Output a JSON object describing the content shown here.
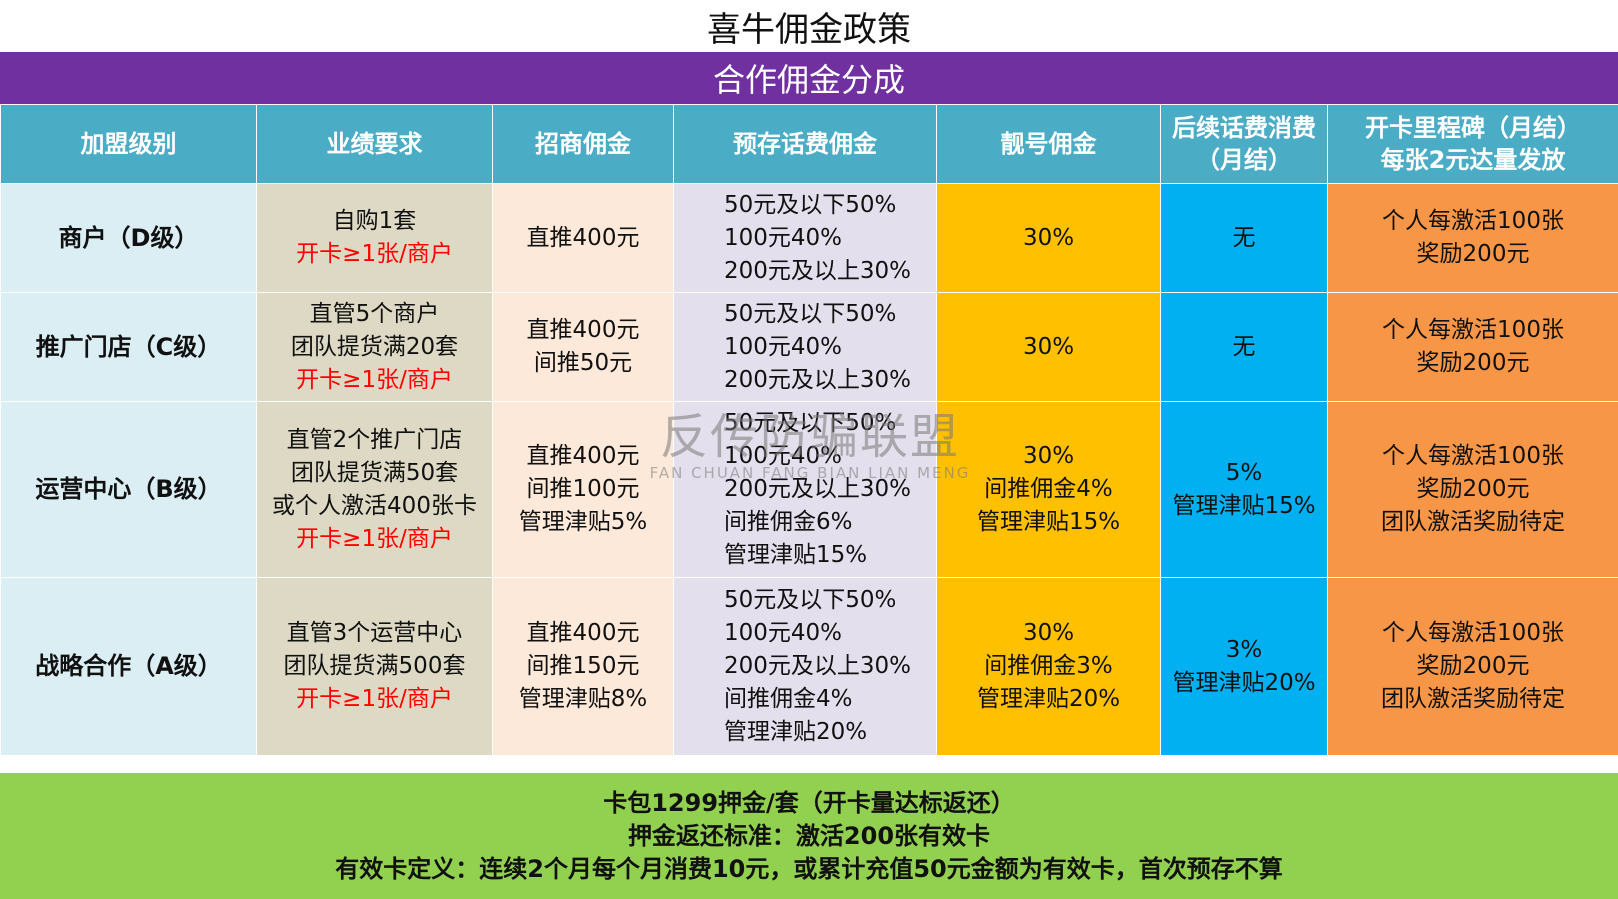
{
  "title": "喜牛佣金政策",
  "subtitle": "合作佣金分成",
  "headers": [
    "加盟级别",
    "业绩要求",
    "招商佣金",
    "预存话费佣金",
    "靓号佣金",
    "后续话费消费（月结）",
    "开卡里程碑（月结）每张2元达量发放"
  ],
  "headers_lines": {
    "consume": [
      "后续话费消费",
      "（月结）"
    ],
    "milestone": [
      "开卡里程碑（月结）",
      "每张2元达量发放"
    ]
  },
  "rows": [
    {
      "level": "商户（D级）",
      "perf": [
        "自购1套"
      ],
      "perf_red": "开卡≥1张/商户",
      "recruit": [
        "直推400元"
      ],
      "prestore": [
        "50元及以下50%",
        "100元40%",
        "200元及以上30%"
      ],
      "number": [
        "30%"
      ],
      "consume": [
        "无"
      ],
      "milestone": [
        "个人每激活100张",
        "奖励200元"
      ]
    },
    {
      "level": "推广门店（C级）",
      "perf": [
        "直管5个商户",
        "团队提货满20套"
      ],
      "perf_red": "开卡≥1张/商户",
      "recruit": [
        "直推400元",
        "间推50元"
      ],
      "prestore": [
        "50元及以下50%",
        "100元40%",
        "200元及以上30%"
      ],
      "number": [
        "30%"
      ],
      "consume": [
        "无"
      ],
      "milestone": [
        "个人每激活100张",
        "奖励200元"
      ]
    },
    {
      "level": "运营中心（B级）",
      "perf": [
        "直管2个推广门店",
        "团队提货满50套",
        "或个人激活400张卡"
      ],
      "perf_red": "开卡≥1张/商户",
      "recruit": [
        "直推400元",
        "间推100元",
        "管理津贴5%"
      ],
      "prestore": [
        "50元及以下50%",
        "100元40%",
        "200元及以上30%",
        "间推佣金6%",
        "管理津贴15%"
      ],
      "number": [
        "30%",
        "间推佣金4%",
        "管理津贴15%"
      ],
      "consume": [
        "5%",
        "管理津贴15%"
      ],
      "milestone": [
        "个人每激活100张",
        "奖励200元",
        "团队激活奖励待定"
      ]
    },
    {
      "level": "战略合作（A级）",
      "perf": [
        "直管3个运营中心",
        "团队提货满500套"
      ],
      "perf_red": "开卡≥1张/商户",
      "recruit": [
        "直推400元",
        "间推150元",
        "管理津贴8%"
      ],
      "prestore": [
        "50元及以下50%",
        "100元40%",
        "200元及以上30%",
        "间推佣金4%",
        "管理津贴20%"
      ],
      "number": [
        "30%",
        "间推佣金3%",
        "管理津贴20%"
      ],
      "consume": [
        "3%",
        "管理津贴20%"
      ],
      "milestone": [
        "个人每激活100张",
        "奖励200元",
        "团队激活奖励待定"
      ]
    }
  ],
  "footer": [
    "卡包1299押金/套（开卡量达标返还）",
    "押金返还标准：激活200张有效卡",
    "有效卡定义：连续2个月每个月消费10元，或累计充值50元金额为有效卡，首次预存不算"
  ],
  "watermark": {
    "cn": "反传防骗联盟",
    "en": "FAN CHUAN FANG BIAN LIAN MENG"
  },
  "colors": {
    "purple": "#7030a0",
    "header": "#4bacc6",
    "level": "#dbeef4",
    "perf": "#ddd9c4",
    "recruit": "#fde9d9",
    "prestore": "#e4dfec",
    "number": "#ffc000",
    "consume": "#00b0f0",
    "milestone": "#f79646",
    "footer": "#92d050",
    "red_text": "#ff0000"
  }
}
